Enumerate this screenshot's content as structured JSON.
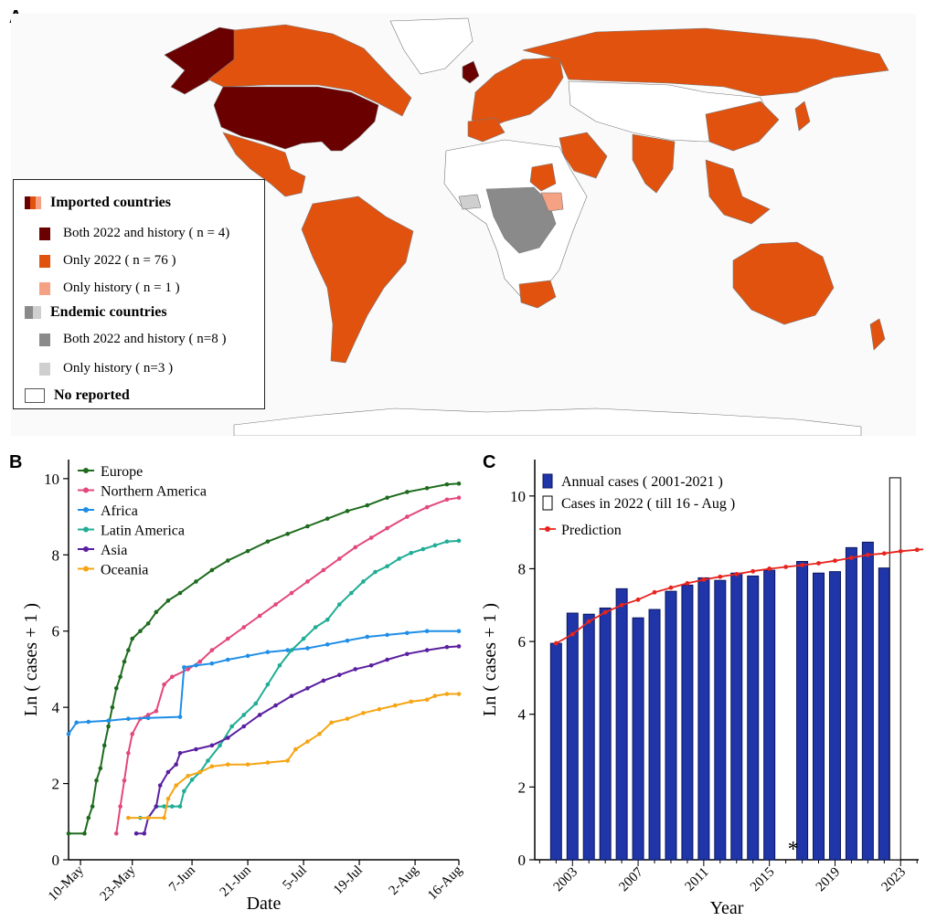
{
  "panels": {
    "a": "A",
    "b": "B",
    "c": "C"
  },
  "map": {
    "colors": {
      "both": "#6b0000",
      "only2022": "#e1520f",
      "onlyHistory": "#f5a184",
      "endemicBoth": "#8a8a8a",
      "endemicHistory": "#cfcfcf",
      "none": "#ffffff"
    },
    "legend": {
      "imported_title": "Imported countries",
      "imported_items": [
        {
          "label": "Both 2022 and history ( n = 4)",
          "color": "#6b0000"
        },
        {
          "label": "Only 2022 ( n = 76 )",
          "color": "#e1520f"
        },
        {
          "label": "Only history ( n = 1 )",
          "color": "#f5a184"
        }
      ],
      "endemic_title": "Endemic countries",
      "endemic_items": [
        {
          "label": "Both 2022 and history ( n=8 )",
          "color": "#8a8a8a"
        },
        {
          "label": "Only history ( n=3 )",
          "color": "#cfcfcf"
        }
      ],
      "none_label": "No reported"
    }
  },
  "chart_data": [
    {
      "type": "line",
      "xlabel": "Date",
      "ylabel": "Ln ( cases + 1 )",
      "ylim": [
        0,
        10.5
      ],
      "yticks": [
        0,
        2,
        4,
        6,
        8,
        10
      ],
      "xlim_days": [
        0,
        98
      ],
      "xticks": [
        {
          "label": "10-May",
          "day": 3
        },
        {
          "label": "23-May",
          "day": 16
        },
        {
          "label": "7-Jun",
          "day": 31
        },
        {
          "label": "21-Jun",
          "day": 45
        },
        {
          "label": "5-Jul",
          "day": 59
        },
        {
          "label": "19-Jul",
          "day": 73
        },
        {
          "label": "2-Aug",
          "day": 87
        },
        {
          "label": "16-Aug",
          "day": 101
        }
      ],
      "series": [
        {
          "name": "Europe",
          "color": "#1e6b1e",
          "points": [
            [
              0,
              0.69
            ],
            [
              4,
              0.69
            ],
            [
              5,
              1.1
            ],
            [
              6,
              1.4
            ],
            [
              7,
              2.08
            ],
            [
              8,
              2.4
            ],
            [
              9,
              3.0
            ],
            [
              10,
              3.5
            ],
            [
              11,
              4.0
            ],
            [
              12,
              4.5
            ],
            [
              13,
              4.8
            ],
            [
              14,
              5.2
            ],
            [
              15,
              5.5
            ],
            [
              16,
              5.8
            ],
            [
              18,
              6.0
            ],
            [
              20,
              6.2
            ],
            [
              22,
              6.5
            ],
            [
              25,
              6.8
            ],
            [
              28,
              7.0
            ],
            [
              32,
              7.3
            ],
            [
              36,
              7.6
            ],
            [
              40,
              7.85
            ],
            [
              45,
              8.1
            ],
            [
              50,
              8.35
            ],
            [
              55,
              8.55
            ],
            [
              60,
              8.75
            ],
            [
              65,
              8.95
            ],
            [
              70,
              9.15
            ],
            [
              75,
              9.3
            ],
            [
              80,
              9.5
            ],
            [
              85,
              9.65
            ],
            [
              90,
              9.75
            ],
            [
              95,
              9.85
            ],
            [
              98,
              9.87
            ]
          ]
        },
        {
          "name": "Northern America",
          "color": "#e3487c",
          "points": [
            [
              12,
              0.69
            ],
            [
              13,
              1.4
            ],
            [
              14,
              2.08
            ],
            [
              15,
              2.8
            ],
            [
              16,
              3.3
            ],
            [
              18,
              3.7
            ],
            [
              20,
              3.8
            ],
            [
              22,
              3.9
            ],
            [
              24,
              4.6
            ],
            [
              26,
              4.8
            ],
            [
              30,
              5.0
            ],
            [
              33,
              5.2
            ],
            [
              36,
              5.5
            ],
            [
              40,
              5.8
            ],
            [
              44,
              6.1
            ],
            [
              48,
              6.4
            ],
            [
              52,
              6.7
            ],
            [
              56,
              7.0
            ],
            [
              60,
              7.3
            ],
            [
              64,
              7.6
            ],
            [
              68,
              7.9
            ],
            [
              72,
              8.2
            ],
            [
              76,
              8.45
            ],
            [
              80,
              8.7
            ],
            [
              85,
              9.0
            ],
            [
              90,
              9.25
            ],
            [
              95,
              9.45
            ],
            [
              98,
              9.5
            ]
          ]
        },
        {
          "name": "Africa",
          "color": "#1e8ee8",
          "points": [
            [
              0,
              3.3
            ],
            [
              2,
              3.6
            ],
            [
              5,
              3.62
            ],
            [
              10,
              3.65
            ],
            [
              15,
              3.7
            ],
            [
              20,
              3.72
            ],
            [
              28,
              3.75
            ],
            [
              29,
              5.05
            ],
            [
              32,
              5.1
            ],
            [
              36,
              5.15
            ],
            [
              40,
              5.25
            ],
            [
              45,
              5.35
            ],
            [
              50,
              5.45
            ],
            [
              55,
              5.5
            ],
            [
              60,
              5.55
            ],
            [
              65,
              5.65
            ],
            [
              70,
              5.75
            ],
            [
              75,
              5.85
            ],
            [
              80,
              5.9
            ],
            [
              85,
              5.95
            ],
            [
              90,
              6.0
            ],
            [
              98,
              6.0
            ]
          ]
        },
        {
          "name": "Latin America",
          "color": "#20ad96",
          "points": [
            [
              18,
              1.1
            ],
            [
              20,
              1.1
            ],
            [
              22,
              1.4
            ],
            [
              24,
              1.4
            ],
            [
              26,
              1.4
            ],
            [
              28,
              1.4
            ],
            [
              29,
              1.8
            ],
            [
              31,
              2.1
            ],
            [
              33,
              2.3
            ],
            [
              35,
              2.6
            ],
            [
              38,
              3.0
            ],
            [
              41,
              3.5
            ],
            [
              44,
              3.8
            ],
            [
              47,
              4.1
            ],
            [
              50,
              4.6
            ],
            [
              53,
              5.1
            ],
            [
              56,
              5.5
            ],
            [
              59,
              5.8
            ],
            [
              62,
              6.1
            ],
            [
              65,
              6.3
            ],
            [
              68,
              6.7
            ],
            [
              71,
              7.0
            ],
            [
              74,
              7.3
            ],
            [
              77,
              7.55
            ],
            [
              80,
              7.7
            ],
            [
              83,
              7.9
            ],
            [
              86,
              8.05
            ],
            [
              89,
              8.15
            ],
            [
              92,
              8.25
            ],
            [
              95,
              8.35
            ],
            [
              98,
              8.37
            ]
          ]
        },
        {
          "name": "Asia",
          "color": "#5a1fa0",
          "points": [
            [
              17,
              0.69
            ],
            [
              19,
              0.69
            ],
            [
              20,
              1.1
            ],
            [
              22,
              1.4
            ],
            [
              23,
              1.95
            ],
            [
              25,
              2.3
            ],
            [
              27,
              2.5
            ],
            [
              28,
              2.8
            ],
            [
              32,
              2.9
            ],
            [
              36,
              3.0
            ],
            [
              40,
              3.2
            ],
            [
              44,
              3.5
            ],
            [
              48,
              3.8
            ],
            [
              52,
              4.05
            ],
            [
              56,
              4.3
            ],
            [
              60,
              4.5
            ],
            [
              64,
              4.7
            ],
            [
              68,
              4.85
            ],
            [
              72,
              5.0
            ],
            [
              76,
              5.1
            ],
            [
              80,
              5.25
            ],
            [
              85,
              5.4
            ],
            [
              90,
              5.5
            ],
            [
              95,
              5.58
            ],
            [
              98,
              5.6
            ]
          ]
        },
        {
          "name": "Oceania",
          "color": "#f5a514",
          "points": [
            [
              15,
              1.1
            ],
            [
              20,
              1.1
            ],
            [
              24,
              1.1
            ],
            [
              25,
              1.6
            ],
            [
              27,
              1.95
            ],
            [
              30,
              2.2
            ],
            [
              33,
              2.3
            ],
            [
              36,
              2.45
            ],
            [
              40,
              2.5
            ],
            [
              45,
              2.5
            ],
            [
              50,
              2.55
            ],
            [
              55,
              2.6
            ],
            [
              57,
              2.9
            ],
            [
              60,
              3.1
            ],
            [
              63,
              3.3
            ],
            [
              66,
              3.6
            ],
            [
              70,
              3.7
            ],
            [
              74,
              3.85
            ],
            [
              78,
              3.95
            ],
            [
              82,
              4.05
            ],
            [
              86,
              4.15
            ],
            [
              90,
              4.2
            ],
            [
              92,
              4.3
            ],
            [
              95,
              4.35
            ],
            [
              98,
              4.35
            ]
          ]
        }
      ]
    },
    {
      "type": "bar",
      "xlabel": "Year",
      "ylabel": "Ln ( cases + 1 )",
      "ylim": [
        0,
        11
      ],
      "yticks": [
        0,
        2,
        4,
        6,
        8,
        10
      ],
      "xticks": [
        2003,
        2007,
        2011,
        2015,
        2019,
        2023
      ],
      "bar_color": "#1f35a8",
      "legend": [
        "Annual cases ( 2001-2021 )",
        "Cases in 2022 ( till 16 - Aug )",
        "Prediction"
      ],
      "bars": [
        [
          2002,
          5.95
        ],
        [
          2003,
          6.78
        ],
        [
          2004,
          6.75
        ],
        [
          2005,
          6.92
        ],
        [
          2006,
          7.45
        ],
        [
          2007,
          6.65
        ],
        [
          2008,
          6.88
        ],
        [
          2009,
          7.38
        ],
        [
          2010,
          7.55
        ],
        [
          2011,
          7.75
        ],
        [
          2012,
          7.68
        ],
        [
          2013,
          7.88
        ],
        [
          2014,
          7.8
        ],
        [
          2015,
          7.96
        ],
        [
          2017,
          8.2
        ],
        [
          2018,
          7.88
        ],
        [
          2019,
          7.92
        ],
        [
          2020,
          8.58
        ],
        [
          2021,
          8.73
        ],
        [
          2022,
          8.02
        ]
      ],
      "bar_2022": [
        2023,
        10.5
      ],
      "missing_marker": "*",
      "missing_year": 2016,
      "prediction": [
        [
          2002,
          5.95
        ],
        [
          2003,
          6.2
        ],
        [
          2004,
          6.55
        ],
        [
          2005,
          6.8
        ],
        [
          2006,
          7.0
        ],
        [
          2007,
          7.15
        ],
        [
          2008,
          7.35
        ],
        [
          2009,
          7.48
        ],
        [
          2010,
          7.6
        ],
        [
          2011,
          7.7
        ],
        [
          2012,
          7.78
        ],
        [
          2013,
          7.85
        ],
        [
          2014,
          7.93
        ],
        [
          2015,
          8.0
        ],
        [
          2016,
          8.05
        ],
        [
          2017,
          8.1
        ],
        [
          2018,
          8.15
        ],
        [
          2019,
          8.22
        ],
        [
          2020,
          8.3
        ],
        [
          2021,
          8.38
        ],
        [
          2022,
          8.42
        ],
        [
          2023,
          8.48
        ],
        [
          2024,
          8.52
        ],
        [
          2025,
          8.55
        ]
      ]
    }
  ]
}
